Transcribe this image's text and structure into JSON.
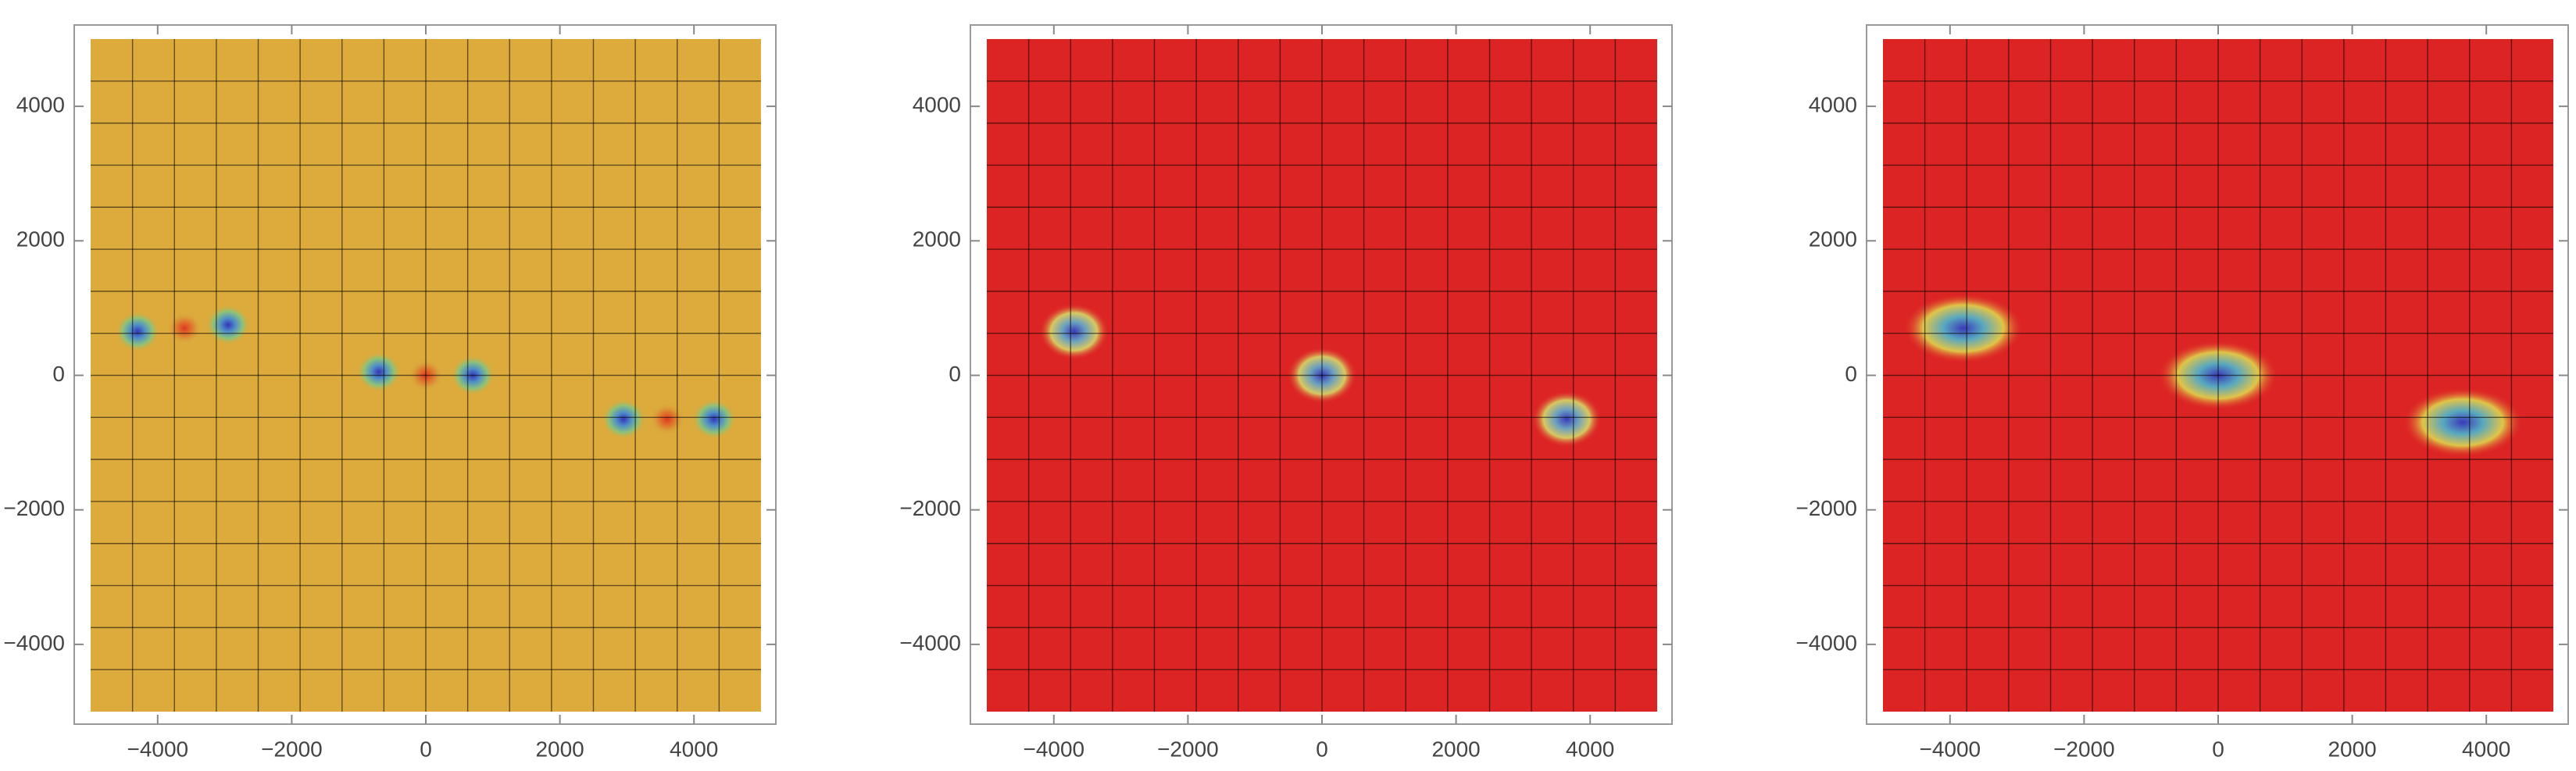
{
  "chart_data": [
    {
      "type": "density",
      "color": "#dcab3c",
      "mesh": 16,
      "xlim": [
        -5000,
        5000
      ],
      "ylim": [
        -5000,
        5000
      ],
      "xticks": [
        {
          "value": -4000,
          "label": "−4000"
        },
        {
          "value": -2000,
          "label": "−2000"
        },
        0,
        2000,
        4000
      ],
      "yticks": [
        {
          "value": -4000,
          "label": "−4000"
        },
        {
          "value": -2000,
          "label": "−2000"
        },
        0,
        2000,
        4000
      ],
      "series": [
        {
          "colors": [
            "#3535b5",
            "#4f8fc8",
            "#8cc27a",
            "#dcab3c"
          ],
          "x": [
            -4300,
            -2950,
            -700,
            700,
            2950,
            4300
          ],
          "y": [
            650,
            750,
            50,
            0,
            -650,
            -650
          ]
        },
        {
          "colors": [
            "#e03a22",
            "#e06a2a",
            "#dc9a38",
            "#dcab3c"
          ],
          "x": [
            -3600,
            0,
            3600
          ],
          "y": [
            700,
            0,
            -650
          ]
        }
      ]
    },
    {
      "type": "density",
      "color": "#dc2424",
      "mesh": 16,
      "xlim": [
        -5000,
        5000
      ],
      "ylim": [
        -5000,
        5000
      ],
      "xticks": [
        {
          "value": -4000,
          "label": "−4000"
        },
        {
          "value": -2000,
          "label": "−2000"
        },
        0,
        2000,
        4000
      ],
      "yticks": [
        {
          "value": -4000,
          "label": "−4000"
        },
        {
          "value": -2000,
          "label": "−2000"
        },
        0,
        2000,
        4000
      ],
      "series": [
        {
          "colors": [
            "#3a3ab8",
            "#6aa0c0",
            "#d8c860",
            "#dc2424"
          ],
          "x": [
            -3700,
            0,
            3650
          ],
          "y": [
            650,
            0,
            -650
          ]
        }
      ]
    },
    {
      "type": "density",
      "color": "#dc2424",
      "mesh": 16,
      "xlim": [
        -5000,
        5000
      ],
      "ylim": [
        -5000,
        5000
      ],
      "xticks": [
        {
          "value": -4000,
          "label": "−4000"
        },
        {
          "value": -2000,
          "label": "−2000"
        },
        0,
        2000,
        4000
      ],
      "yticks": [
        {
          "value": -4000,
          "label": "−4000"
        },
        {
          "value": -2000,
          "label": "−2000"
        },
        0,
        2000,
        4000
      ],
      "series": [
        {
          "colors": [
            "#3a3ab8",
            "#58a8c0",
            "#e0c448",
            "#dc2424"
          ],
          "x": [
            -3800,
            0,
            3650
          ],
          "y": [
            700,
            0,
            -700
          ]
        }
      ]
    }
  ]
}
